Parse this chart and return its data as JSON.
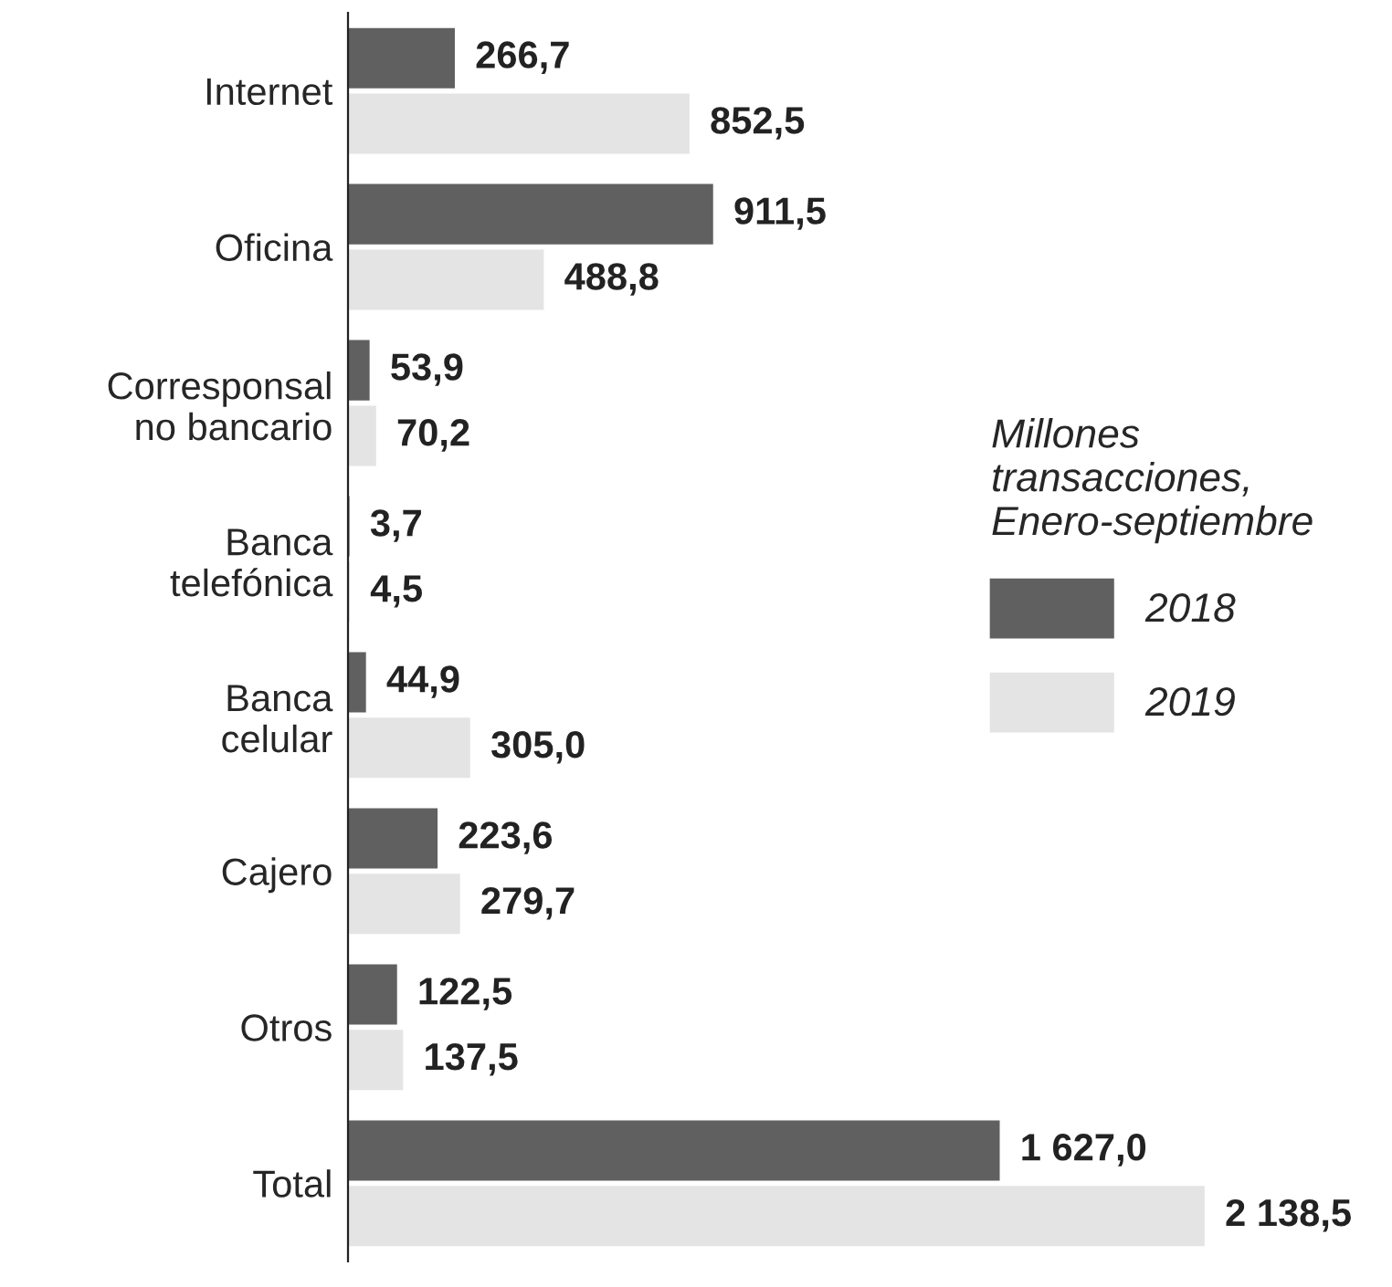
{
  "chart_data": {
    "type": "bar",
    "orientation": "horizontal",
    "categories": [
      "Internet",
      "Oficina",
      "Corresponsal\nno bancario",
      "Banca\ntelefónica",
      "Banca\ncelular",
      "Cajero",
      "Otros",
      "Total"
    ],
    "series": [
      {
        "name": "2018",
        "color": "#606060",
        "values": [
          266.7,
          911.5,
          53.9,
          3.7,
          44.9,
          223.6,
          122.5,
          1627.0
        ],
        "value_labels": [
          "266,7",
          "911,5",
          "53,9",
          "3,7",
          "44,9",
          "223,6",
          "122,5",
          "1 627,0"
        ]
      },
      {
        "name": "2019",
        "color": "#e4e4e4",
        "values": [
          852.5,
          488.8,
          70.2,
          4.5,
          305.0,
          279.7,
          137.5,
          2138.5
        ],
        "value_labels": [
          "852,5",
          "488,8",
          "70,2",
          "4,5",
          "305,0",
          "279,7",
          "137,5",
          "2 138,5"
        ]
      }
    ],
    "legend_title": "Millones\ntransacciones,\nEnero-septiembre",
    "legend": "right",
    "tick_labels": "y",
    "grid": false
  }
}
